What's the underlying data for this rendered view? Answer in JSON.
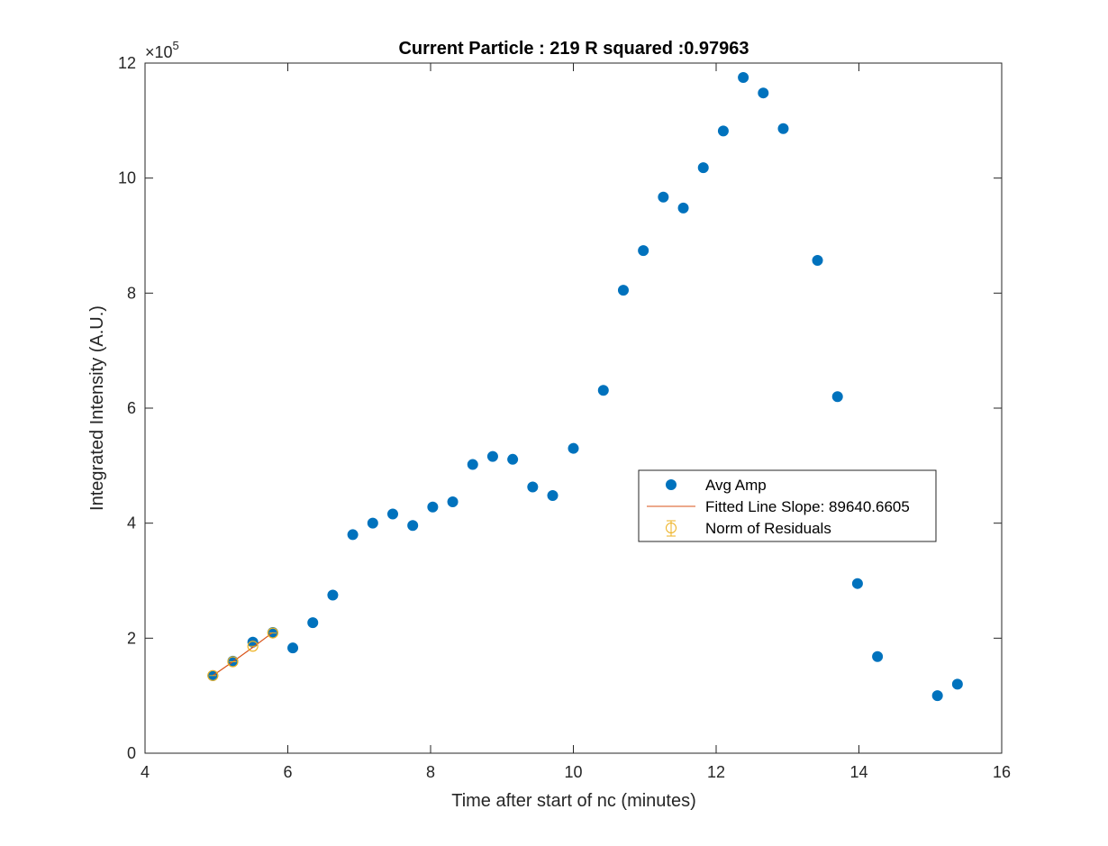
{
  "chart_data": {
    "type": "scatter",
    "title": "Current Particle : 219   R squared :0.97963",
    "xlabel": "Time after start of nc (minutes)",
    "ylabel": "Integrated Intensity (A.U.)",
    "xlim": [
      4,
      16
    ],
    "ylim": [
      0,
      1200000
    ],
    "xticks": [
      4,
      6,
      8,
      10,
      12,
      14,
      16
    ],
    "yticks": [
      0,
      200000,
      400000,
      600000,
      800000,
      1000000,
      1200000
    ],
    "xtick_labels": [
      "4",
      "6",
      "8",
      "10",
      "12",
      "14",
      "16"
    ],
    "ytick_labels": [
      "0",
      "2",
      "4",
      "6",
      "8",
      "10",
      "12"
    ],
    "y_exponent_base": "×10",
    "y_exponent_power": "5",
    "grid": false,
    "legend_position": "center-right",
    "colors": {
      "avg_amp": "#0072BD",
      "fit": "#D95319",
      "residuals": "#EDB120",
      "axes": "#262626"
    },
    "series": [
      {
        "name": "Avg Amp",
        "kind": "markers",
        "x": [
          4.95,
          5.23,
          5.51,
          5.79,
          6.07,
          6.35,
          6.63,
          6.91,
          7.19,
          7.47,
          7.75,
          8.03,
          8.31,
          8.59,
          8.87,
          9.15,
          9.43,
          9.71,
          10.0,
          10.42,
          10.7,
          10.98,
          11.26,
          11.54,
          11.82,
          12.1,
          12.38,
          12.66,
          12.94,
          13.42,
          13.7,
          13.98,
          14.26,
          15.1,
          15.38
        ],
        "y": [
          135000,
          160000,
          193000,
          210000,
          183000,
          227000,
          275000,
          380000,
          400000,
          416000,
          396000,
          428000,
          437000,
          502000,
          516000,
          511000,
          463000,
          448000,
          530000,
          631000,
          805000,
          874000,
          967000,
          948000,
          1018000,
          1082000,
          1175000,
          1148000,
          1086000,
          857000,
          620000,
          295000,
          168000,
          100000,
          120000
        ]
      },
      {
        "name": "Fitted Line Slope: 89640.6605",
        "kind": "line",
        "x": [
          4.95,
          5.23,
          5.51,
          5.79
        ],
        "y": [
          135000,
          159000,
          184000,
          210000
        ]
      },
      {
        "name": "Norm of Residuals",
        "kind": "errorbar",
        "x": [
          4.95,
          5.23,
          5.51,
          5.79
        ],
        "y": [
          135000,
          159000,
          186000,
          209000
        ]
      }
    ]
  }
}
